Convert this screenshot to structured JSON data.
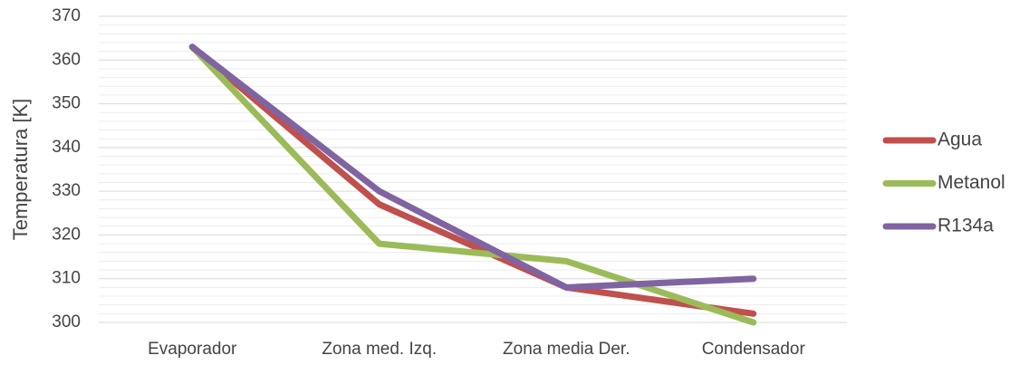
{
  "chart_data": {
    "type": "line",
    "ylabel": "Temperatura [K]",
    "categories": [
      "Evaporador",
      "Zona med. Izq.",
      "Zona media Der.",
      "Condensador"
    ],
    "series": [
      {
        "name": "Agua",
        "color": "#c0504d",
        "values": [
          363,
          327,
          308,
          302
        ]
      },
      {
        "name": "Metanol",
        "color": "#9bbb59",
        "values": [
          363,
          318,
          314,
          300
        ]
      },
      {
        "name": "R134a",
        "color": "#8064a2",
        "values": [
          363,
          330,
          308,
          310
        ]
      }
    ],
    "ylim": [
      300,
      370
    ],
    "yticks": [
      300,
      310,
      320,
      330,
      340,
      350,
      360,
      370
    ],
    "minor_yticks": [
      302,
      304,
      306,
      308,
      312,
      314,
      316,
      318,
      322,
      324,
      326,
      328,
      332,
      334,
      336,
      338,
      342,
      344,
      346,
      348,
      352,
      354,
      356,
      358,
      362,
      364,
      366,
      368
    ],
    "grid": true,
    "legend": "right"
  }
}
